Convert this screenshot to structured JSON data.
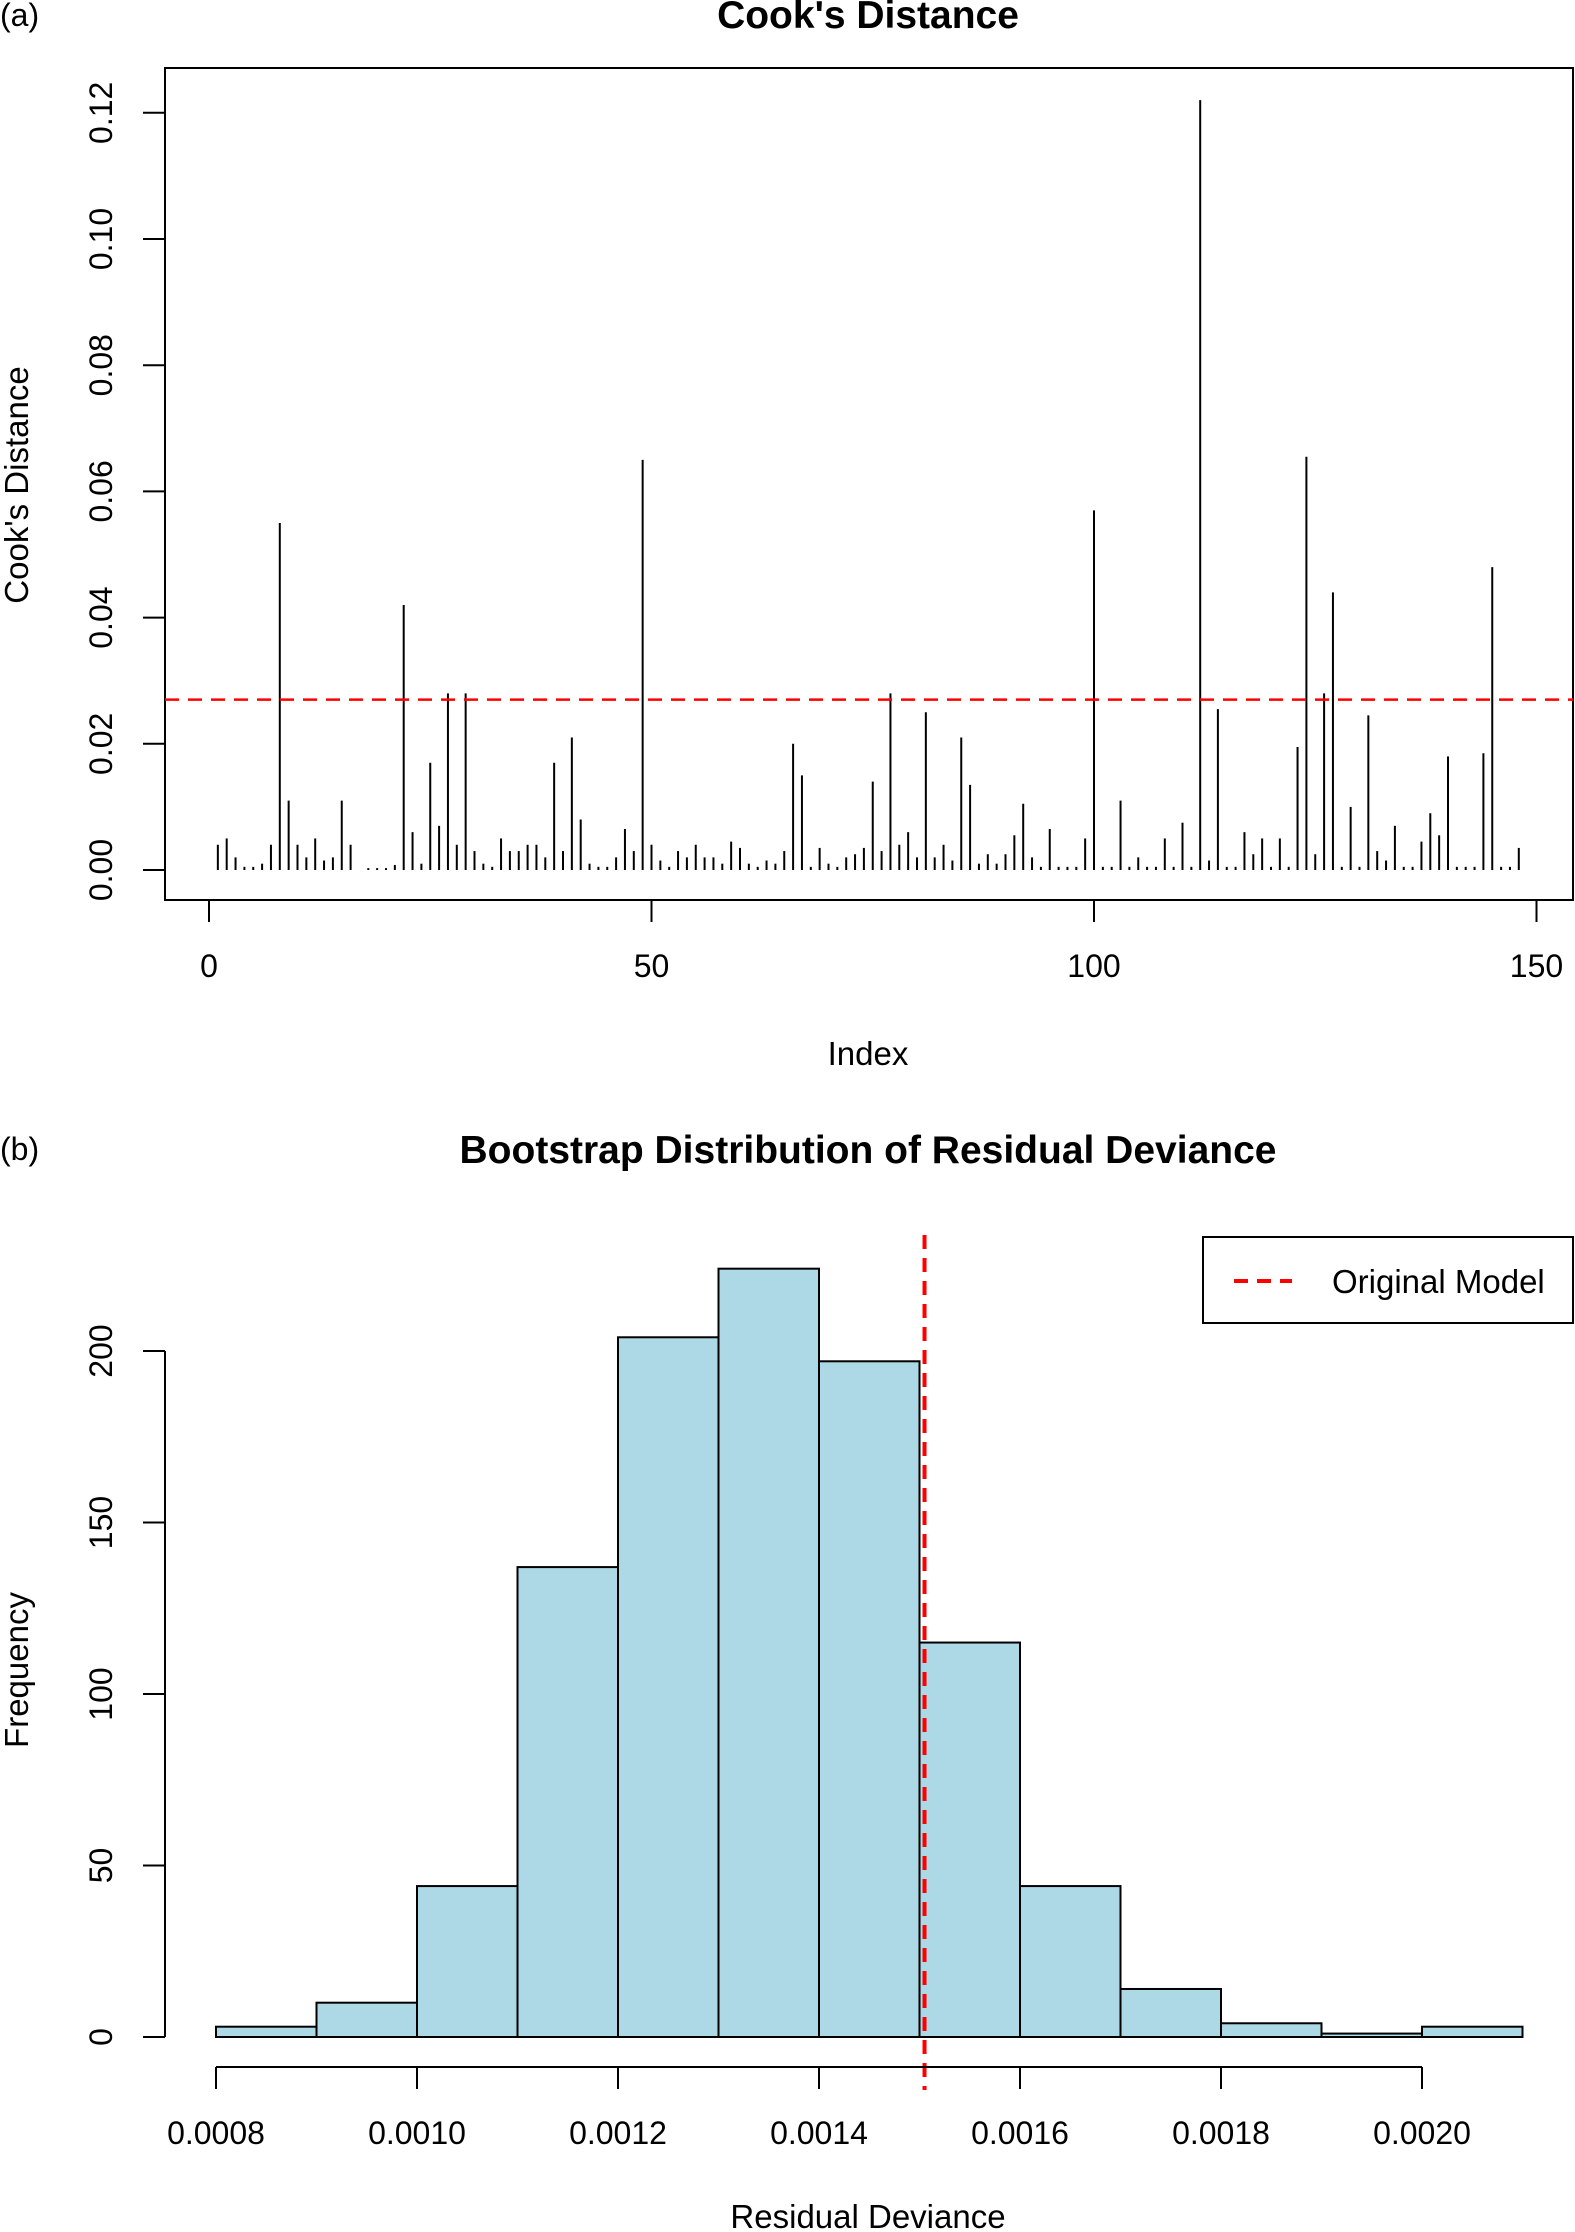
{
  "chart_data": [
    {
      "panel_label": "(a)",
      "type": "bar",
      "title": "Cook's Distance",
      "xlabel": "Index",
      "ylabel": "Cook's Distance",
      "xlim": [
        1,
        148
      ],
      "ylim": [
        0,
        0.12
      ],
      "x_ticks": [
        "0",
        "50",
        "100",
        "150"
      ],
      "y_ticks": [
        "0.00",
        "0.02",
        "0.04",
        "0.06",
        "0.08",
        "0.10",
        "0.12"
      ],
      "threshold": 0.027,
      "threshold_color": "#ff0000",
      "bar_color": "#000000",
      "values": [
        0.004,
        0.005,
        0.002,
        0.0005,
        0.0005,
        0.001,
        0.004,
        0.055,
        0.011,
        0.004,
        0.002,
        0.005,
        0.0015,
        0.002,
        0.011,
        0.004,
        0,
        0.0003,
        0.0003,
        0.0003,
        0.0008,
        0.042,
        0.006,
        0.001,
        0.017,
        0.007,
        0.028,
        0.004,
        0.028,
        0.003,
        0.001,
        0.0005,
        0.005,
        0.003,
        0.003,
        0.004,
        0.004,
        0.002,
        0.017,
        0.003,
        0.021,
        0.008,
        0.001,
        0.0005,
        0.0005,
        0.002,
        0.0065,
        0.003,
        0.065,
        0.004,
        0.0015,
        0.0005,
        0.003,
        0.002,
        0.004,
        0.002,
        0.002,
        0.001,
        0.0045,
        0.0035,
        0.001,
        0.0005,
        0.0015,
        0.001,
        0.003,
        0.02,
        0.015,
        0.0005,
        0.0035,
        0.001,
        0.0005,
        0.002,
        0.0025,
        0.0035,
        0.014,
        0.003,
        0.028,
        0.004,
        0.006,
        0.002,
        0.025,
        0.002,
        0.004,
        0.0015,
        0.021,
        0.0135,
        0.001,
        0.0025,
        0.001,
        0.0025,
        0.0055,
        0.0105,
        0.002,
        0.0005,
        0.0065,
        0.0005,
        0.0005,
        0.0005,
        0.005,
        0.057,
        0.0005,
        0.0005,
        0.011,
        0.0005,
        0.002,
        0.0005,
        0.0005,
        0.005,
        0.0005,
        0.0075,
        0.0005,
        0.122,
        0.0015,
        0.0255,
        0.0005,
        0.0005,
        0.006,
        0.0025,
        0.005,
        0.0005,
        0.005,
        0.0005,
        0.0195,
        0.0655,
        0.0025,
        0.028,
        0.044,
        0.0005,
        0.01,
        0.0005,
        0.0245,
        0.003,
        0.0015,
        0.007,
        0.0005,
        0.0005,
        0.0045,
        0.009,
        0.0055,
        0.018,
        0.0005,
        0.0005,
        0.0005,
        0.0185,
        0.048,
        0.0005,
        0.0005,
        0.0035
      ]
    },
    {
      "panel_label": "(b)",
      "type": "bar",
      "title": "Bootstrap Distribution of Residual Deviance",
      "xlabel": "Residual Deviance",
      "ylabel": "Frequency",
      "xlim": [
        0.0008,
        0.0021
      ],
      "ylim": [
        0,
        224
      ],
      "bin_edges": [
        0.0008,
        0.0009,
        0.001,
        0.0011,
        0.0012,
        0.0013,
        0.0014,
        0.0015,
        0.0016,
        0.0017,
        0.0018,
        0.0019,
        0.002,
        0.0021
      ],
      "values": [
        3,
        10,
        44,
        137,
        204,
        224,
        197,
        115,
        44,
        14,
        4,
        1,
        3
      ],
      "x_ticks": [
        "0.0008",
        "0.0010",
        "0.0012",
        "0.0014",
        "0.0016",
        "0.0018",
        "0.0020"
      ],
      "y_ticks": [
        "0",
        "50",
        "100",
        "150",
        "200"
      ],
      "bar_fill": "#add8e6",
      "reference_line": 0.001505,
      "reference_color": "#ff0000",
      "legend": {
        "label": "Original Model",
        "position": "top-right"
      }
    }
  ]
}
